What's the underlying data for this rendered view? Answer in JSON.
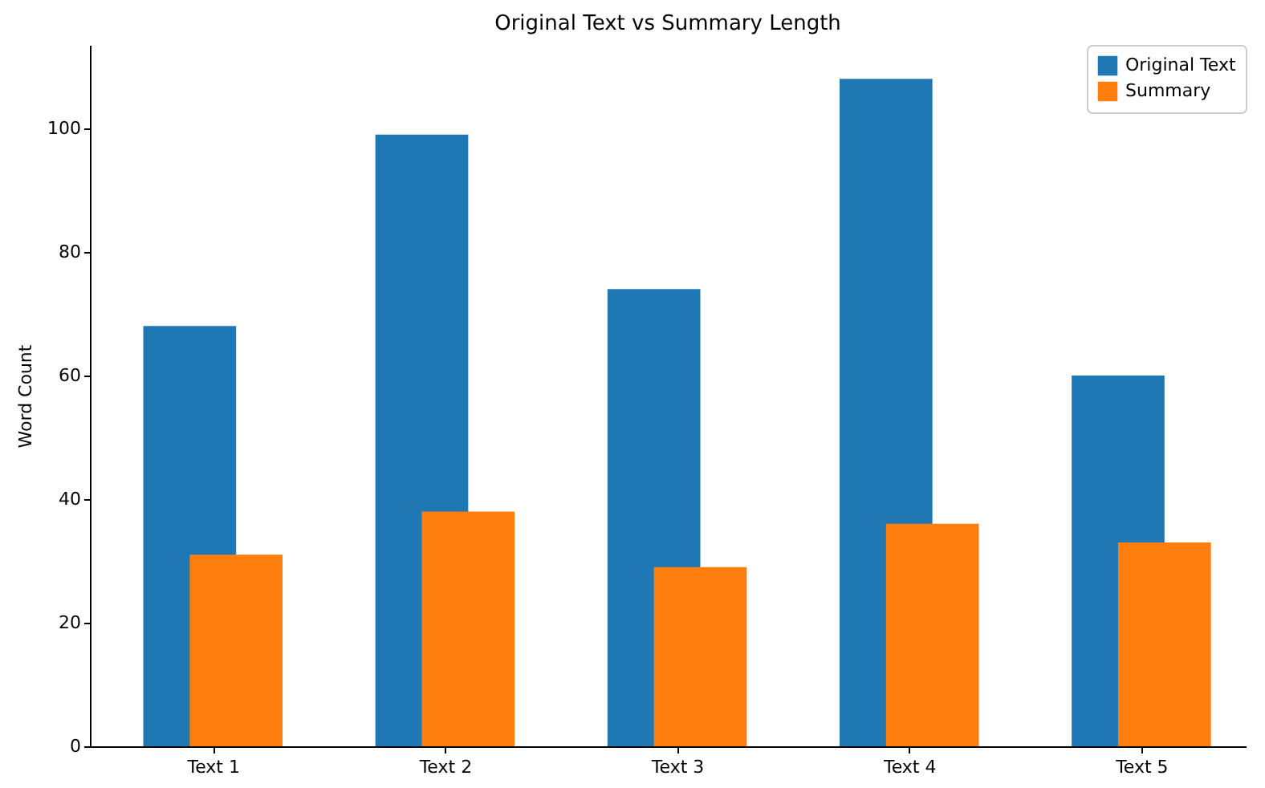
{
  "chart_data": {
    "type": "bar",
    "title": "Original Text vs Summary Length",
    "ylabel": "Word Count",
    "categories": [
      "Text 1",
      "Text 2",
      "Text 3",
      "Text 4",
      "Text 5"
    ],
    "series": [
      {
        "name": "Original Text",
        "color": "#1f77b4",
        "values": [
          68,
          99,
          74,
          108,
          60
        ]
      },
      {
        "name": "Summary",
        "color": "#ff7f0e",
        "values": [
          31,
          38,
          29,
          36,
          33
        ]
      }
    ],
    "ylim": [
      0,
      113.5
    ],
    "yticks": [
      0,
      20,
      40,
      60,
      80,
      100
    ],
    "grid": false,
    "legend": "top right"
  }
}
